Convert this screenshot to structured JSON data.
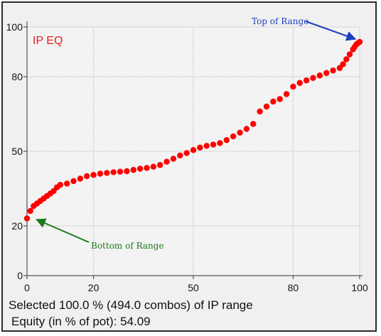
{
  "chart_data": {
    "type": "scatter",
    "series": [
      {
        "name": "IP EQ",
        "color": "#ff0000",
        "x": [
          0,
          1,
          2,
          3,
          4,
          5,
          6,
          7,
          8,
          9,
          10,
          12,
          14,
          16,
          18,
          20,
          22,
          24,
          26,
          28,
          30,
          32,
          34,
          36,
          38,
          40,
          42,
          44,
          46,
          48,
          50,
          52,
          54,
          56,
          58,
          60,
          62,
          64,
          66,
          68,
          70,
          72,
          74,
          76,
          78,
          80,
          82,
          84,
          86,
          88,
          90,
          92,
          94,
          95,
          96,
          97,
          98,
          98.5,
          99,
          99.5,
          100
        ],
        "y": [
          23,
          26,
          28,
          29,
          30,
          31,
          32,
          33,
          34,
          35.5,
          36.5,
          37,
          38,
          39,
          40,
          40.5,
          41,
          41.3,
          41.6,
          41.8,
          42,
          42.5,
          43,
          43.3,
          43.8,
          44.5,
          45.8,
          47,
          48.3,
          49.3,
          50.5,
          51.5,
          52.2,
          52.7,
          53.3,
          54.5,
          56,
          57.5,
          59,
          61,
          66,
          68,
          70,
          71,
          73,
          76,
          77.5,
          78.5,
          79.5,
          80.5,
          81.5,
          82.5,
          83.5,
          85,
          87,
          89,
          91,
          92,
          93,
          93.5,
          94
        ]
      }
    ],
    "xlim": [
      0,
      100
    ],
    "ylim": [
      0,
      100
    ],
    "xticks": [
      0,
      20,
      50,
      80,
      100
    ],
    "yticks": [
      0,
      20,
      50,
      80,
      100
    ],
    "grid": true,
    "legend": "top-left inside plot",
    "annotations": [
      {
        "text": "Top of Range",
        "point": [
          100,
          94
        ],
        "color": "#1f3fbf"
      },
      {
        "text": "Bottom of Range",
        "point": [
          2,
          22
        ],
        "color": "#1c7a1c"
      }
    ]
  },
  "footer": {
    "selected": "Selected 100.0 % (494.0 combos) of IP range",
    "equity": "Equity (in % of pot): 54.09"
  }
}
